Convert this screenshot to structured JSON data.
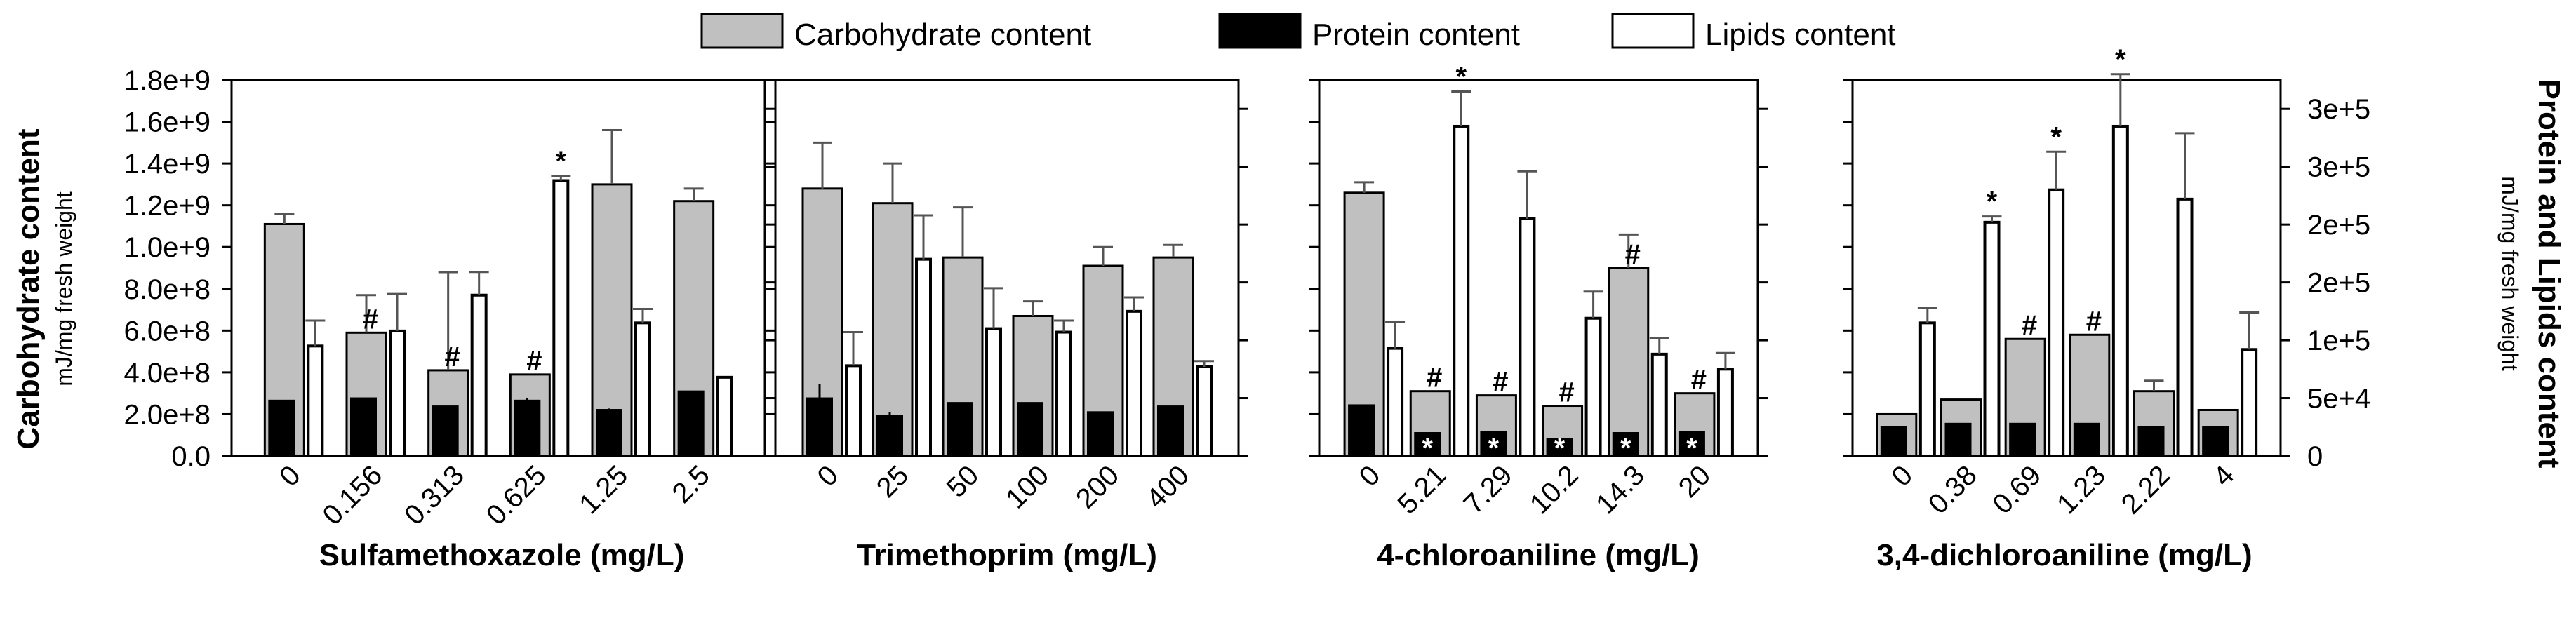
{
  "chart_data": {
    "type": "bar",
    "legend": [
      {
        "name": "Carbohydrate content",
        "color": "#c0c0c0"
      },
      {
        "name": "Protein content",
        "color": "#000000"
      },
      {
        "name": "Lipids content",
        "color": "#ffffff"
      }
    ],
    "left_axis": {
      "title": "Carbohydrate content",
      "subtitle": "mJ/mg fresh weight",
      "range": [
        0,
        1800000000
      ],
      "ticks": [
        "0.0",
        "2.0e+8",
        "4.0e+8",
        "6.0e+8",
        "8.0e+8",
        "1.0e+9",
        "1.2e+9",
        "1.4e+9",
        "1.6e+9",
        "1.8e+9"
      ]
    },
    "right_axis": {
      "title": "Protein and Lipids content",
      "subtitle": "mJ/mg fresh weight",
      "range": [
        0,
        325000
      ],
      "ticks": [
        "0",
        "5e+4",
        "1e+5",
        "2e+5",
        "2e+5",
        "3e+5",
        "3e+5"
      ]
    },
    "panels": [
      {
        "xlabel": "Sulfamethoxazole (mg/L)",
        "categories": [
          "0",
          "0.156",
          "0.313",
          "0.625",
          "1.25",
          "2.5"
        ],
        "carbohydrate": [
          1110000000,
          590000000,
          410000000,
          390000000,
          1300000000,
          1220000000
        ],
        "carbohydrate_err": [
          50000000,
          180000000,
          470000000,
          0,
          260000000,
          60000000
        ],
        "protein": [
          48000,
          50000,
          43000,
          48000,
          40000,
          56000
        ],
        "protein_err": [
          0,
          0,
          0,
          2000,
          1000,
          0
        ],
        "lipids": [
          95000,
          108000,
          139000,
          238000,
          115000,
          68000
        ],
        "lipids_err": [
          22000,
          32000,
          20000,
          4000,
          12000,
          0
        ],
        "carbohydrate_marks": [
          "",
          "#",
          "#",
          "#",
          "",
          ""
        ],
        "lipids_marks": [
          "",
          "",
          "",
          "*",
          "",
          ""
        ],
        "protein_marks": [
          "",
          "",
          "",
          "",
          "",
          ""
        ]
      },
      {
        "xlabel": "Trimethoprim (mg/L)",
        "categories": [
          "0",
          "25",
          "50",
          "100",
          "200",
          "400"
        ],
        "carbohydrate": [
          1280000000,
          1210000000,
          950000000,
          670000000,
          910000000,
          950000000
        ],
        "carbohydrate_err": [
          220000000,
          190000000,
          240000000,
          70000000,
          90000000,
          60000000
        ],
        "protein": [
          50000,
          35000,
          46000,
          46000,
          38000,
          43000
        ],
        "protein_err": [
          12000,
          3000,
          0,
          0,
          0,
          0
        ],
        "lipids": [
          78000,
          170000,
          110000,
          107000,
          125000,
          77000
        ],
        "lipids_err": [
          29000,
          38000,
          35000,
          10000,
          12000,
          5000
        ],
        "carbohydrate_marks": [
          "",
          "",
          "",
          "",
          "",
          ""
        ],
        "lipids_marks": [
          "",
          "",
          "",
          "",
          "",
          ""
        ],
        "protein_marks": [
          "",
          "",
          "",
          "",
          "",
          ""
        ]
      },
      {
        "xlabel": "4-chloroaniline (mg/L)",
        "categories": [
          "0",
          "5.21",
          "7.29",
          "10.2",
          "14.3",
          "20"
        ],
        "carbohydrate": [
          1260000000,
          310000000,
          290000000,
          240000000,
          900000000,
          300000000
        ],
        "carbohydrate_err": [
          50000000,
          0,
          0,
          0,
          160000000,
          0
        ],
        "protein": [
          44000,
          20000,
          21000,
          15000,
          20000,
          21000
        ],
        "protein_err": [
          0,
          0,
          0,
          0,
          0,
          0
        ],
        "lipids": [
          93000,
          285000,
          205000,
          119000,
          88000,
          75000
        ],
        "lipids_err": [
          23000,
          30000,
          41000,
          23000,
          14000,
          14000
        ],
        "carbohydrate_marks": [
          "",
          "#",
          "#",
          "#",
          "#",
          "#"
        ],
        "lipids_marks": [
          "",
          "*",
          "",
          "",
          "",
          ""
        ],
        "protein_marks": [
          "",
          "*",
          "*",
          "*",
          "*",
          "*"
        ]
      },
      {
        "xlabel": "3,4-dichloroaniline (mg/L)",
        "categories": [
          "0",
          "0.38",
          "0.69",
          "1.23",
          "2.22",
          "4"
        ],
        "carbohydrate": [
          200000000,
          270000000,
          560000000,
          580000000,
          310000000,
          220000000
        ],
        "carbohydrate_err": [
          0,
          0,
          0,
          0,
          50000000,
          0
        ],
        "protein": [
          25000,
          28000,
          28000,
          28000,
          25000,
          25000
        ],
        "protein_err": [
          0,
          0,
          0,
          0,
          0,
          0
        ],
        "lipids": [
          115000,
          202000,
          230000,
          285000,
          222000,
          92000
        ],
        "lipids_err": [
          13000,
          5000,
          33000,
          45000,
          57000,
          32000
        ],
        "carbohydrate_marks": [
          "",
          "",
          "#",
          "#",
          "",
          ""
        ],
        "lipids_marks": [
          "",
          "*",
          "*",
          "*",
          "",
          ""
        ],
        "protein_marks": [
          "",
          "",
          "",
          "",
          "",
          ""
        ]
      }
    ]
  }
}
